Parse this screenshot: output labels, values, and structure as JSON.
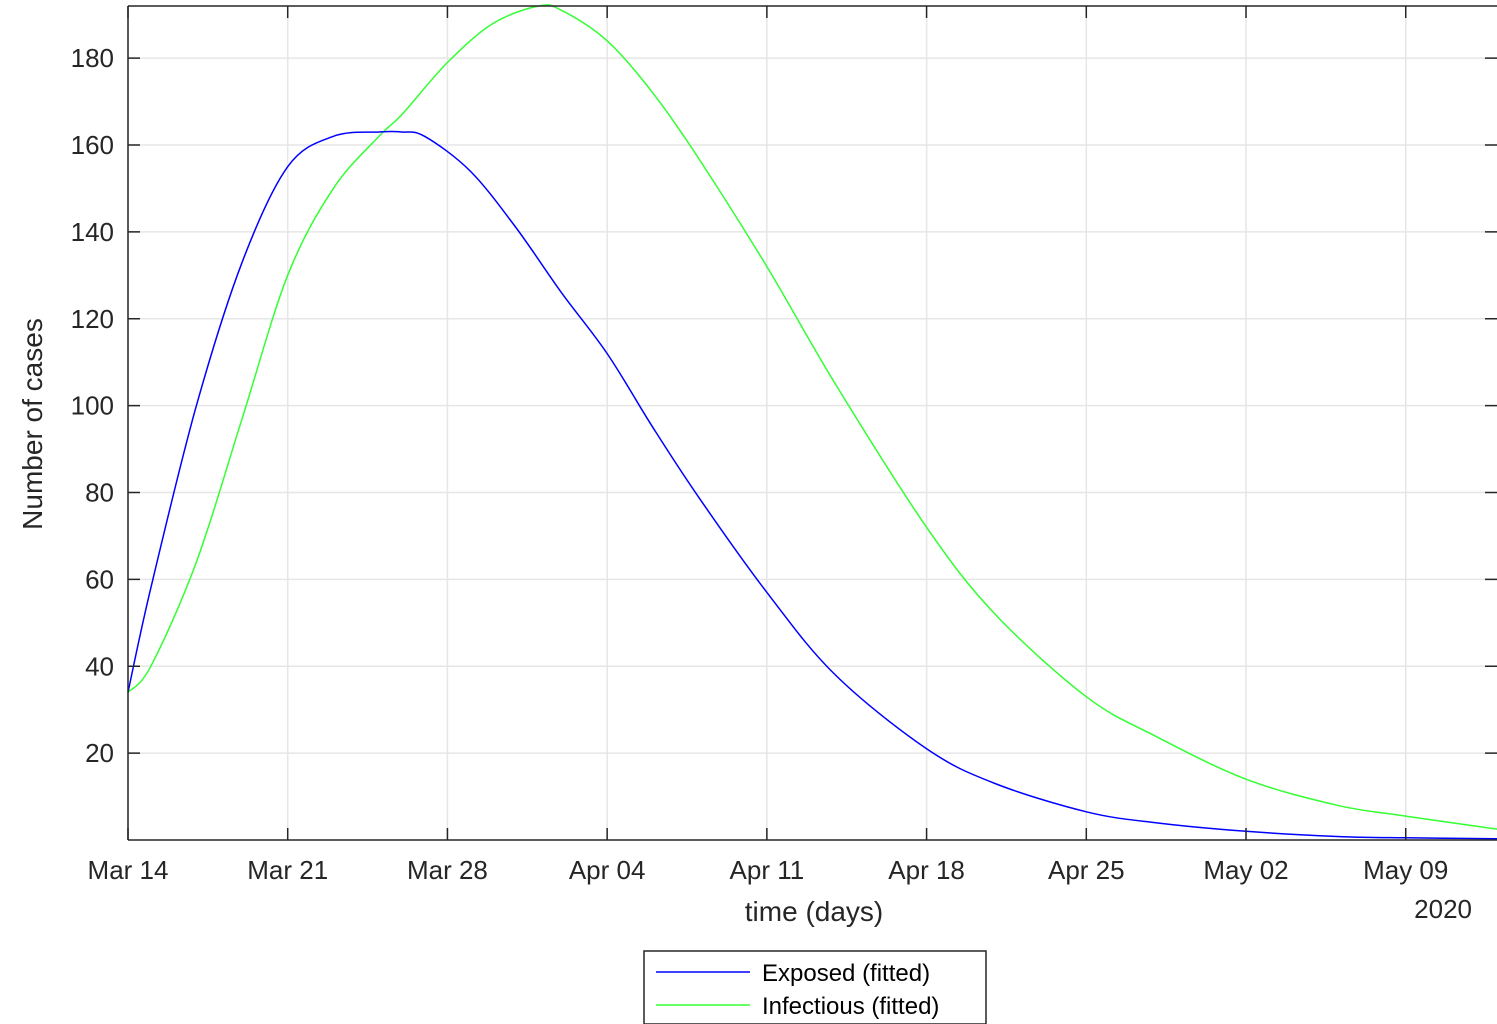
{
  "chart_data": {
    "type": "line",
    "xlabel": "time (days)",
    "ylabel": "Number of cases",
    "x_secondary_label": "2020",
    "x_range": [
      "2020-03-14",
      "2020-05-13"
    ],
    "ylim": [
      0,
      192
    ],
    "grid": true,
    "legend_position": "bottom-center, outside axes",
    "x_ticks": [
      {
        "date": "2020-03-14",
        "label": "Mar 14"
      },
      {
        "date": "2020-03-21",
        "label": "Mar 21"
      },
      {
        "date": "2020-03-28",
        "label": "Mar 28"
      },
      {
        "date": "2020-04-04",
        "label": "Apr 04"
      },
      {
        "date": "2020-04-11",
        "label": "Apr 11"
      },
      {
        "date": "2020-04-18",
        "label": "Apr 18"
      },
      {
        "date": "2020-04-25",
        "label": "Apr 25"
      },
      {
        "date": "2020-05-02",
        "label": "May 02"
      },
      {
        "date": "2020-05-09",
        "label": "May 09"
      }
    ],
    "y_ticks": [
      20,
      40,
      60,
      80,
      100,
      120,
      140,
      160,
      180
    ],
    "series": [
      {
        "name": "Exposed (fitted)",
        "color": "#0000ff",
        "x": [
          "2020-03-14",
          "2020-03-15",
          "2020-03-17",
          "2020-03-19",
          "2020-03-21",
          "2020-03-23",
          "2020-03-25",
          "2020-03-26",
          "2020-03-27",
          "2020-03-29",
          "2020-03-31",
          "2020-04-02",
          "2020-04-04",
          "2020-04-06",
          "2020-04-08",
          "2020-04-11",
          "2020-04-14",
          "2020-04-18",
          "2020-04-21",
          "2020-04-25",
          "2020-04-28",
          "2020-05-02",
          "2020-05-06",
          "2020-05-09",
          "2020-05-13"
        ],
        "y": [
          34,
          58,
          100,
          133,
          155,
          162,
          163,
          163,
          162,
          154,
          141,
          126,
          112,
          95,
          79,
          57,
          38,
          21,
          13,
          6.5,
          4,
          2,
          0.8,
          0.5,
          0.3
        ]
      },
      {
        "name": "Infectious (fitted)",
        "color": "#33ff33",
        "x": [
          "2020-03-14",
          "2020-03-15",
          "2020-03-17",
          "2020-03-19",
          "2020-03-21",
          "2020-03-23",
          "2020-03-25",
          "2020-03-26",
          "2020-03-28",
          "2020-03-30",
          "2020-04-01",
          "2020-04-02",
          "2020-04-04",
          "2020-04-06",
          "2020-04-08",
          "2020-04-11",
          "2020-04-14",
          "2020-04-18",
          "2020-04-21",
          "2020-04-25",
          "2020-04-28",
          "2020-05-02",
          "2020-05-06",
          "2020-05-09",
          "2020-05-13"
        ],
        "y": [
          34,
          40,
          64,
          97,
          130,
          150,
          162,
          167,
          179,
          188,
          192,
          191,
          184,
          172,
          157,
          132,
          105,
          72,
          52,
          33,
          24,
          14,
          8,
          5.5,
          2.5
        ]
      }
    ]
  }
}
